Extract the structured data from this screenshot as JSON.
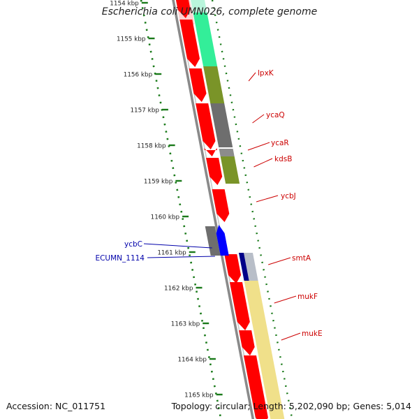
{
  "title": "Escherichia coli UMN026, complete genome",
  "accession_text": "Accession: NC_011751",
  "summary_text": "Topology: circular; Length: 5,202,090 bp; Genes: 5,014",
  "colors": {
    "backbone": "#8a8a8a",
    "ruler": "#1a7a1a",
    "label_forward": "#cc0000",
    "label_reverse": "#0000aa",
    "gene_red": "#ff0000",
    "gene_blue": "#0000ff",
    "gene_gray": "#6e6e6e",
    "gene_olive": "#7a9428",
    "gene_teal": "#33ee99",
    "gene_yellow": "#f0e08a",
    "gene_navy": "#000088"
  },
  "ruler_ticks": [
    "1154 kbp",
    "1155 kbp",
    "1156 kbp",
    "1157 kbp",
    "1158 kbp",
    "1159 kbp",
    "1160 kbp",
    "1161 kbp",
    "1162 kbp",
    "1163 kbp",
    "1164 kbp",
    "1165 kbp"
  ],
  "gene_labels": [
    {
      "name": "lpxK",
      "strand": "forward"
    },
    {
      "name": "ycaQ",
      "strand": "forward"
    },
    {
      "name": "ycaR",
      "strand": "forward"
    },
    {
      "name": "kdsB",
      "strand": "forward"
    },
    {
      "name": "ycbJ",
      "strand": "forward"
    },
    {
      "name": "ycbC",
      "strand": "reverse"
    },
    {
      "name": "ECUMN_1114",
      "strand": "reverse"
    },
    {
      "name": "smtA",
      "strand": "forward"
    },
    {
      "name": "mukF",
      "strand": "forward"
    },
    {
      "name": "mukE",
      "strand": "forward"
    }
  ]
}
